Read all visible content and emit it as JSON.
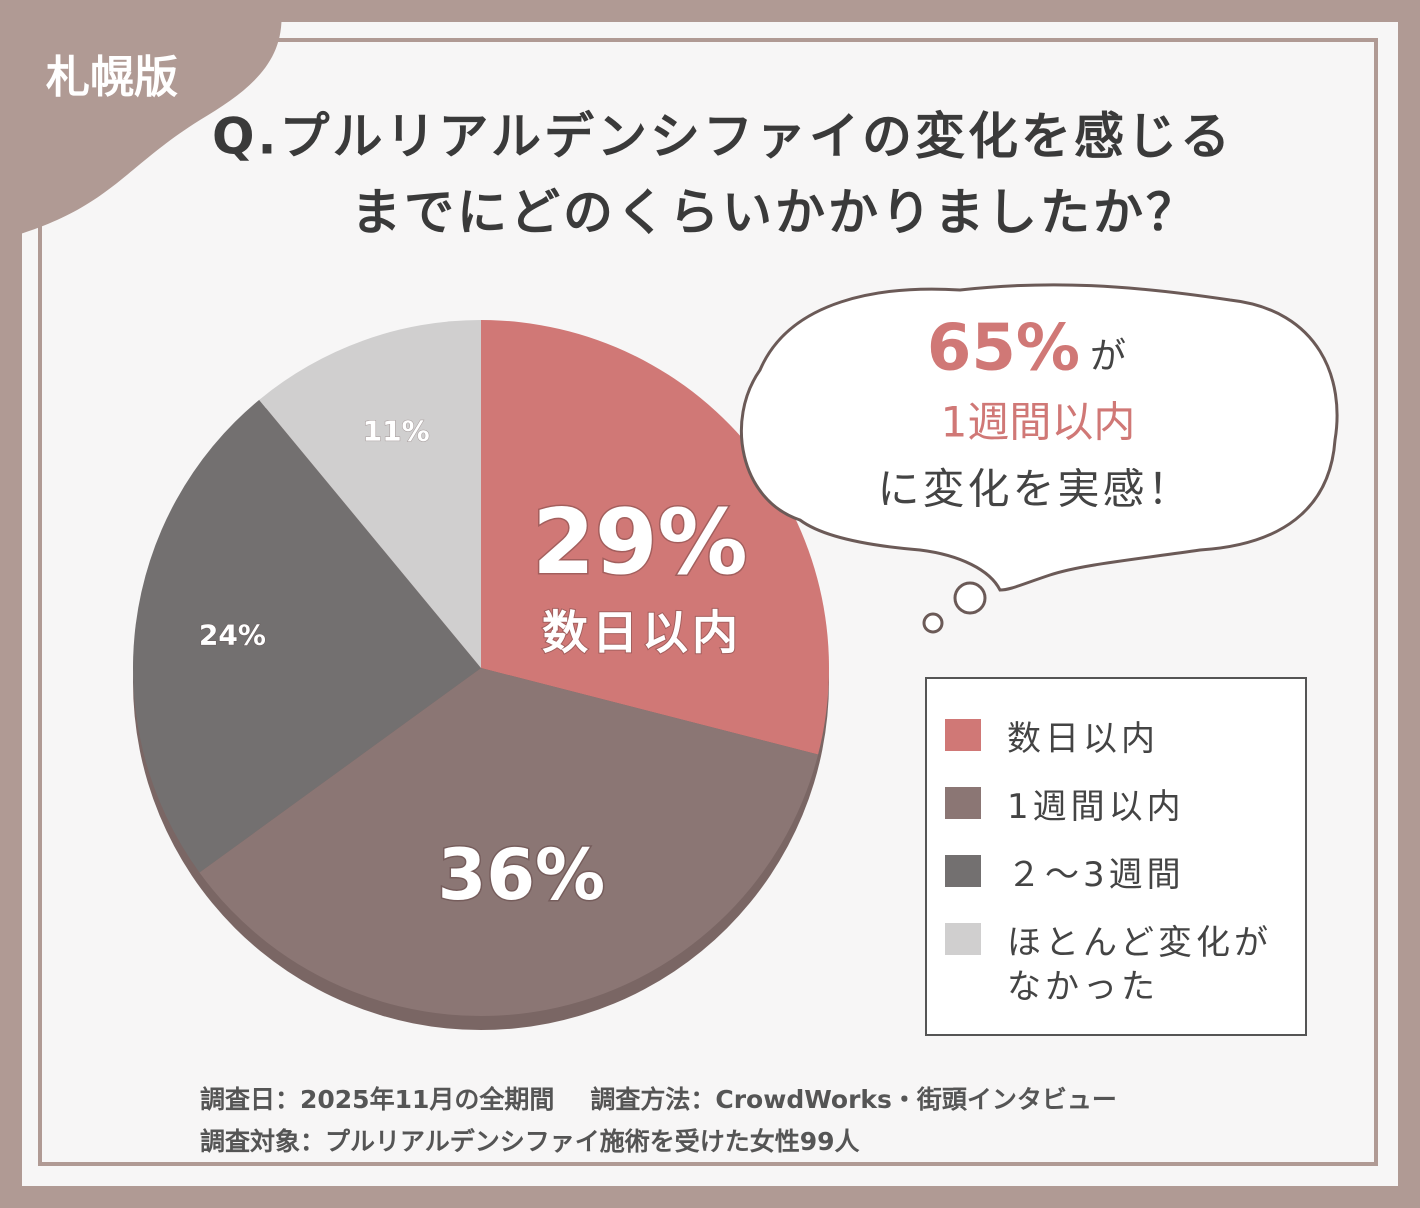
{
  "badge": "札幌版",
  "chart_data": {
    "type": "pie",
    "title": [
      "Q.プルリアルデンシファイの変化を感じる",
      "までにどのくらいかかりましたか？"
    ],
    "categories": [
      "数日以内",
      "1週間以内",
      "２～3週間",
      "ほとんど変化がなかった"
    ],
    "values": [
      29,
      36,
      24,
      11
    ],
    "value_labels": [
      "29%",
      "36%",
      "24%",
      "11%"
    ],
    "colors": [
      "#d07876",
      "#8b7674",
      "#737070",
      "#d0cfcf"
    ],
    "annotation": {
      "highlight": "65%",
      "suffix": "が",
      "line2": "1週間以内",
      "line3": "に変化を実感！"
    }
  },
  "footer": [
    "調査日：2025年11月の全期間",
    "調査方法：CrowdWorks・街頭インタビュー",
    "調査対象：プルリアルデンシファイ施術を受けた女性99人"
  ]
}
